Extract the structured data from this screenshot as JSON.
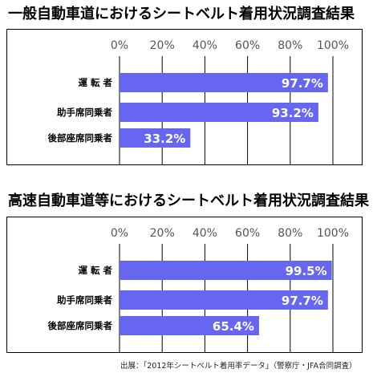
{
  "source_note": "出展：「2012年シートベルト着用率データ」（警察庁・JFA合同調査）",
  "chart_data": [
    {
      "type": "bar",
      "orientation": "horizontal",
      "title": "一般自動車道におけるシートベルト着用状況調査結果",
      "categories": [
        "運 転 者",
        "助手席同乗者",
        "後部座席同乗者"
      ],
      "values": [
        97.7,
        93.2,
        33.2
      ],
      "value_labels": [
        "97.7%",
        "93.2%",
        "33.2%"
      ],
      "xlim": [
        0,
        100
      ],
      "ticks": [
        0,
        20,
        40,
        60,
        80,
        100
      ],
      "tick_labels": [
        "0%",
        "20%",
        "40%",
        "60%",
        "80%",
        "100%"
      ],
      "grid": true,
      "bar_color": "#6666f0"
    },
    {
      "type": "bar",
      "orientation": "horizontal",
      "title": "高速自動車道等におけるシートベルト着用状況調査結果",
      "categories": [
        "運 転 者",
        "助手席同乗者",
        "後部座席同乗者"
      ],
      "values": [
        99.5,
        97.7,
        65.4
      ],
      "value_labels": [
        "99.5%",
        "97.7%",
        "65.4%"
      ],
      "xlim": [
        0,
        100
      ],
      "ticks": [
        0,
        20,
        40,
        60,
        80,
        100
      ],
      "tick_labels": [
        "0%",
        "20%",
        "40%",
        "60%",
        "80%",
        "100%"
      ],
      "grid": true,
      "bar_color": "#6666f0"
    }
  ]
}
